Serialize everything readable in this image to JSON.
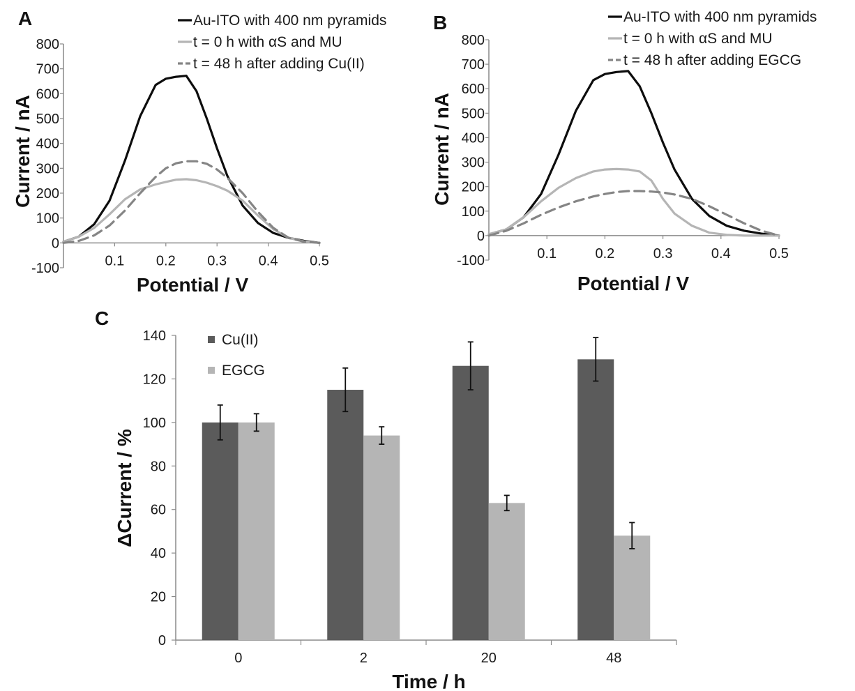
{
  "colors": {
    "black_line": "#0d0d0d",
    "light_line": "#b5b5b5",
    "dashed_line": "#858585",
    "bar_dark": "#5b5b5b",
    "bar_light": "#b5b5b5",
    "axis": "#8a8a8a"
  },
  "chart_data": [
    {
      "id": "A",
      "type": "line",
      "panel_label": "A",
      "xlabel": "Potential / V",
      "ylabel": "Current / nA",
      "xlim": [
        0,
        0.5
      ],
      "ylim": [
        -100,
        800
      ],
      "xticks": [
        0.1,
        0.2,
        0.3,
        0.4,
        0.5
      ],
      "yticks": [
        -100,
        0,
        100,
        200,
        300,
        400,
        500,
        600,
        700,
        800
      ],
      "grid": false,
      "legend_position": "top-right",
      "series": [
        {
          "name": "Au-ITO with 400 nm pyramids",
          "style": "solid-dark",
          "x": [
            0,
            0.03,
            0.06,
            0.09,
            0.12,
            0.15,
            0.18,
            0.2,
            0.22,
            0.24,
            0.26,
            0.28,
            0.3,
            0.32,
            0.35,
            0.38,
            0.41,
            0.44,
            0.47,
            0.5
          ],
          "y": [
            5,
            25,
            75,
            170,
            330,
            510,
            635,
            660,
            668,
            672,
            610,
            500,
            380,
            270,
            150,
            80,
            40,
            20,
            8,
            0
          ]
        },
        {
          "name": "t = 0 h with αS and MU",
          "style": "solid-light",
          "x": [
            0,
            0.03,
            0.06,
            0.09,
            0.12,
            0.15,
            0.18,
            0.2,
            0.22,
            0.24,
            0.26,
            0.28,
            0.3,
            0.32,
            0.35,
            0.38,
            0.41,
            0.44,
            0.47,
            0.5
          ],
          "y": [
            5,
            25,
            60,
            115,
            175,
            215,
            235,
            245,
            254,
            256,
            252,
            242,
            228,
            210,
            170,
            110,
            55,
            20,
            6,
            0
          ]
        },
        {
          "name": "t = 48 h after adding Cu(II)",
          "style": "dashed",
          "x": [
            0,
            0.03,
            0.06,
            0.09,
            0.12,
            0.15,
            0.18,
            0.2,
            0.22,
            0.24,
            0.26,
            0.28,
            0.3,
            0.32,
            0.35,
            0.38,
            0.41,
            0.44,
            0.47,
            0.5
          ],
          "y": [
            0,
            8,
            30,
            70,
            130,
            200,
            265,
            300,
            320,
            328,
            328,
            318,
            295,
            262,
            200,
            125,
            60,
            20,
            5,
            0
          ]
        }
      ]
    },
    {
      "id": "B",
      "type": "line",
      "panel_label": "B",
      "xlabel": "Potential / V",
      "ylabel": "Current / nA",
      "xlim": [
        0,
        0.5
      ],
      "ylim": [
        -100,
        800
      ],
      "xticks": [
        0.1,
        0.2,
        0.3,
        0.4,
        0.5
      ],
      "yticks": [
        -100,
        0,
        100,
        200,
        300,
        400,
        500,
        600,
        700,
        800
      ],
      "grid": false,
      "legend_position": "top-right",
      "series": [
        {
          "name": "Au-ITO with 400 nm pyramids",
          "style": "solid-dark",
          "x": [
            0,
            0.03,
            0.06,
            0.09,
            0.12,
            0.15,
            0.18,
            0.2,
            0.22,
            0.24,
            0.26,
            0.28,
            0.3,
            0.32,
            0.35,
            0.38,
            0.41,
            0.44,
            0.47,
            0.5
          ],
          "y": [
            5,
            25,
            75,
            170,
            330,
            510,
            635,
            660,
            668,
            672,
            610,
            500,
            380,
            270,
            150,
            80,
            40,
            20,
            8,
            0
          ]
        },
        {
          "name": "t = 0 h with αS and MU",
          "style": "solid-light",
          "x": [
            0,
            0.03,
            0.06,
            0.09,
            0.12,
            0.15,
            0.18,
            0.2,
            0.22,
            0.24,
            0.26,
            0.28,
            0.3,
            0.32,
            0.35,
            0.38,
            0.41,
            0.44,
            0.47,
            0.5
          ],
          "y": [
            5,
            25,
            75,
            140,
            195,
            235,
            262,
            270,
            272,
            270,
            262,
            225,
            150,
            90,
            40,
            12,
            3,
            0,
            0,
            0
          ]
        },
        {
          "name": "t = 48 h after adding EGCG",
          "style": "dashed",
          "x": [
            0,
            0.03,
            0.06,
            0.09,
            0.12,
            0.15,
            0.18,
            0.2,
            0.22,
            0.24,
            0.26,
            0.28,
            0.3,
            0.32,
            0.35,
            0.38,
            0.41,
            0.44,
            0.47,
            0.5
          ],
          "y": [
            0,
            20,
            50,
            85,
            115,
            140,
            160,
            170,
            178,
            182,
            182,
            180,
            176,
            168,
            150,
            120,
            85,
            50,
            20,
            0
          ]
        }
      ]
    },
    {
      "id": "C",
      "type": "bar",
      "panel_label": "C",
      "xlabel": "Time / h",
      "ylabel": "ΔCurrent / %",
      "categories": [
        "0",
        "2",
        "20",
        "48"
      ],
      "ylim": [
        0,
        140
      ],
      "yticks": [
        0,
        20,
        40,
        60,
        80,
        100,
        120,
        140
      ],
      "grid": false,
      "legend_position": "top-left",
      "series": [
        {
          "name": "Cu(II)",
          "values": [
            100,
            115,
            126,
            129
          ],
          "errors": [
            8,
            10,
            11,
            10
          ]
        },
        {
          "name": "EGCG",
          "values": [
            100,
            94,
            63,
            48
          ],
          "errors": [
            4,
            4,
            3.5,
            6
          ]
        }
      ]
    }
  ]
}
